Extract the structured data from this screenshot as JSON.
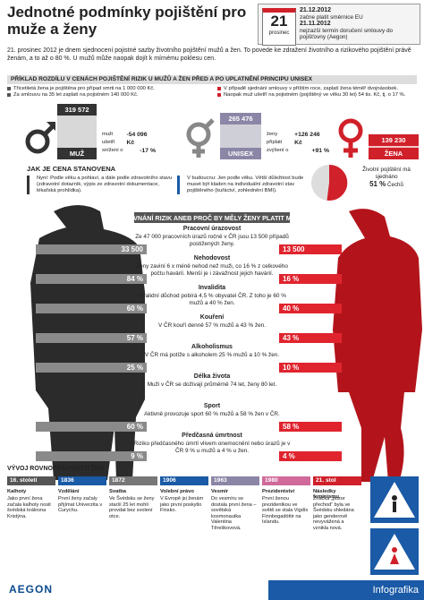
{
  "header": {
    "title": "Jednotné podmínky pojištění pro muže a ženy",
    "calendar": {
      "day": "21",
      "month": "prosinec"
    },
    "notes": [
      {
        "date": "21.12.2012",
        "text": "začne platit směrnice EU"
      },
      {
        "date": "21.11.2012",
        "text": "nejzazší termín doručení smlouvy do pojišťovny (Aegon)"
      }
    ]
  },
  "intro": "21. prosinec 2012 je dnem sjednocení pojistné sazby životního pojištění mužů a žen. To povede ke zdražení životního a rizikového pojištění právě ženám, a to až o 80 %. U mužů může naopak dojít k mírnému poklesu cen.",
  "example": {
    "title": "PŘÍKLAD ROZDÍLU V CENÁCH POJIŠTĚNÍ RIZIK U MUŽŮ A ŽEN PŘED A PO UPLATNĚNÍ PRINCIPU UNISEX",
    "notes": [
      "Třicetiletá žena je pojištěna pro případ smrti na 1 000 000 Kč.",
      "V případě sjednání smlouvy v příštím roce, zaplatí žena téměř dvojnásobek.",
      "Za smlouvu na 35 let zaplatí na pojistném 140 000 Kč.",
      "Naopak muž ušetří na pojistném (pojištěný ve věku 30 let) 54 tis. Kč, tj. o 17 %."
    ],
    "men": {
      "value": "319 572",
      "label": "MUŽ",
      "change_label": "muži ušetří",
      "change": "-54 096 Kč",
      "pct_label": "snížení o",
      "pct": "-17 %"
    },
    "unisex": {
      "value": "265 476",
      "label": "UNISEX"
    },
    "women": {
      "value": "139 230",
      "label": "ŽENA",
      "change_label": "ženy připlatí",
      "change": "+126 246 Kč",
      "pct_label": "zvýšení o",
      "pct": "+91 %"
    }
  },
  "pricing": {
    "title": "JAK JE CENA STANOVENA",
    "now": "Nyní: Podle věku a pohlaví, a dále podle zdravotního stavu (zdravotní dotazník, výpis ze zdravotní dokumentace, lékařská prohlídka).",
    "future": "V budoucnu: Jen podle věku. Větší důležitost bude muset být kladen na individuální zdravotní stav pojištěného (kuřáctví, zohlednění BMI).",
    "stat_text": "Životní pojištění má sjednáno",
    "stat_value": "51 %",
    "stat_unit": "Čechů"
  },
  "comparison": {
    "title": "SROVNÁNÍ RIZIK ANEB PROČ BY MĚLY ŽENY PLATIT MÉNĚ",
    "items": [
      {
        "title": "Pracovní úrazovost",
        "text": "Ze 47 000 pracovních úrazů ročně v ČR jsou 13 500 případů postižených ženy.",
        "men": "33 500",
        "women": "13 500"
      },
      {
        "title": "Nehodovost",
        "text": "Ženy zaviní 6 x méně nehod než muži, co 16 % z celkového počtu havárií. Menší je i závažnost jejich havárií.",
        "men": "84 %",
        "women": "16 %"
      },
      {
        "title": "Invalidita",
        "text": "Invalidní důchod pobírá 4,5 % obyvatel ČR. Z toho je 60 % mužů a 40 % žen.",
        "men": "60 %",
        "women": "40 %"
      },
      {
        "title": "Kouření",
        "text": "V ČR kouří denně 57 % mužů a 43 % žen.",
        "men": "57 %",
        "women": "43 %"
      },
      {
        "title": "Alkoholismus",
        "text": "V ČR má potíže s alkoholem 25 % mužů a 10 % žen.",
        "men": "25 %",
        "women": "10 %"
      },
      {
        "title": "Délka života",
        "text": "Muži v ČR se dožívají průměrně 74 let, ženy 80 let."
      },
      {
        "title": "Sport",
        "text": "Aktivně provozuje sport 60 % mužů a 58 % žen v ČR.",
        "men": "60 %",
        "women": "58 %"
      },
      {
        "title": "Předčasná úmrtnost",
        "text": "Riziko předčasného úmrtí vlivem onemocnění nebo úrazů je v ČR 9 % u mužů a 4 % u žen.",
        "men": "9 %",
        "women": "4 %"
      }
    ]
  },
  "timeline": {
    "title": "VÝVOJ ROVNOPRÁVNOSTI ŽEN",
    "events": [
      {
        "year": "16. století",
        "topic": "Kalhoty",
        "text": "Jako první žena začala kalhoty nosit švédská královna Kristýna."
      },
      {
        "year": "1836",
        "topic": "Vzdělání",
        "text": "První ženy začaly přijímat Univerzita v Curychu."
      },
      {
        "year": "1872",
        "topic": "Svatba",
        "text": "Ve Švédsku se ženy starší 25 let mohli provdat bez svolení otce."
      },
      {
        "year": "1906",
        "topic": "Volební právo",
        "text": "V Evropě jsi ženám jako první poskytlo Finsko."
      },
      {
        "year": "1963",
        "topic": "Vesmír",
        "text": "Do vesmíru se dostala první žena – sovětská kosmonautka Valentina Těreškovová."
      },
      {
        "year": "1980",
        "topic": "Prezidentství",
        "text": "První ženou prezidentkou ve světě se stala Vigdís Finnbogadóttir na Islandu."
      },
      {
        "year": "21. stol",
        "topic": "Následky feminismu",
        "text": "Značka „pozor přechod“ byla ve Švédsku shledána jako genderově nevyvážená a vznikla nová."
      }
    ]
  },
  "footer": {
    "brand": "AEGON",
    "label": "Infografika"
  }
}
